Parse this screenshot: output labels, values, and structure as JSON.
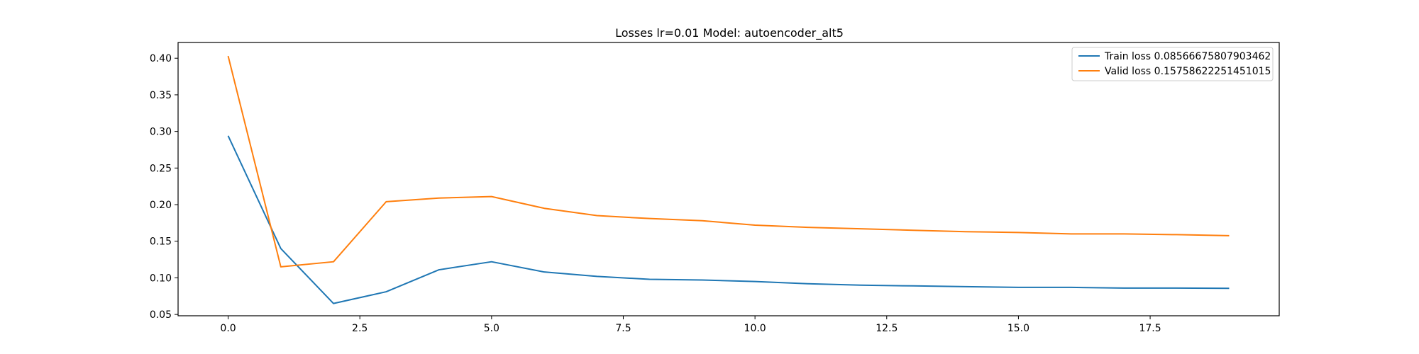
{
  "chart_data": {
    "type": "line",
    "title": "Losses lr=0.01 Model: autoencoder_alt5",
    "xlabel": "",
    "ylabel": "",
    "xlim": [
      -0.95,
      19.95
    ],
    "ylim": [
      0.0482,
      0.4215
    ],
    "x_ticks": [
      0.0,
      2.5,
      5.0,
      7.5,
      10.0,
      12.5,
      15.0,
      17.5
    ],
    "x_tick_labels": [
      "0.0",
      "2.5",
      "5.0",
      "7.5",
      "10.0",
      "12.5",
      "15.0",
      "17.5"
    ],
    "y_ticks": [
      0.05,
      0.1,
      0.15,
      0.2,
      0.25,
      0.3,
      0.35,
      0.4
    ],
    "y_tick_labels": [
      "0.05",
      "0.10",
      "0.15",
      "0.20",
      "0.25",
      "0.30",
      "0.35",
      "0.40"
    ],
    "grid": false,
    "legend_position": "top-right",
    "x": [
      0,
      1,
      2,
      3,
      4,
      5,
      6,
      7,
      8,
      9,
      10,
      11,
      12,
      13,
      14,
      15,
      16,
      17,
      18,
      19
    ],
    "series": [
      {
        "name": "Train loss 0.08566675807903462",
        "color": "#1f77b4",
        "values": [
          0.294,
          0.14,
          0.065,
          0.081,
          0.111,
          0.122,
          0.108,
          0.102,
          0.098,
          0.097,
          0.095,
          0.092,
          0.09,
          0.089,
          0.088,
          0.087,
          0.087,
          0.086,
          0.086,
          0.0857
        ]
      },
      {
        "name": "Valid loss 0.15758622251451015",
        "color": "#ff7f0e",
        "values": [
          0.403,
          0.115,
          0.122,
          0.204,
          0.209,
          0.211,
          0.195,
          0.185,
          0.181,
          0.178,
          0.172,
          0.169,
          0.167,
          0.165,
          0.163,
          0.162,
          0.16,
          0.16,
          0.159,
          0.1576
        ]
      }
    ]
  }
}
